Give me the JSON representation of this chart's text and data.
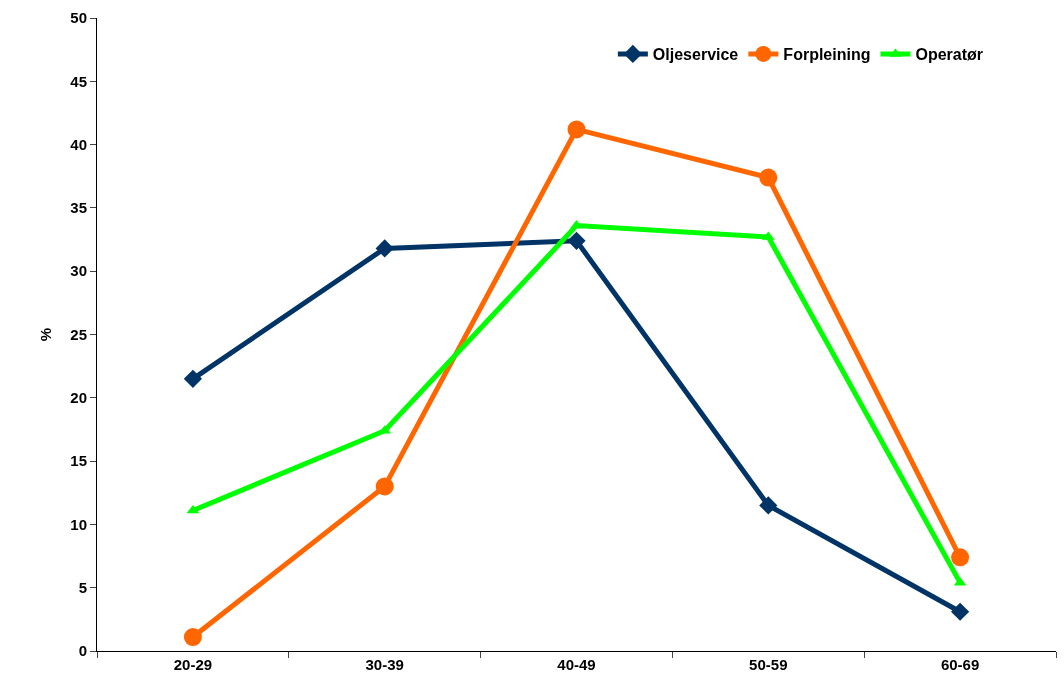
{
  "chart_data": {
    "type": "line",
    "ylabel": "%",
    "categories": [
      "20-29",
      "30-39",
      "40-49",
      "50-59",
      "60-69"
    ],
    "series": [
      {
        "name": "Oljeservice",
        "color": "#003366",
        "marker": "diamond",
        "values": [
          21.5,
          31.8,
          32.4,
          11.5,
          3.1
        ]
      },
      {
        "name": "Forpleining",
        "color": "#ff6600",
        "marker": "circle",
        "values": [
          1.1,
          13.0,
          41.2,
          37.4,
          7.4
        ]
      },
      {
        "name": "Operatør",
        "color": "#00ff00",
        "marker": "triangle",
        "values": [
          11.1,
          17.4,
          33.6,
          32.7,
          5.4
        ]
      }
    ],
    "ylim": [
      0,
      50
    ],
    "yticks": [
      0,
      5,
      10,
      15,
      20,
      25,
      30,
      35,
      40,
      45,
      50
    ],
    "legend": "top right",
    "line_style": "solid"
  }
}
